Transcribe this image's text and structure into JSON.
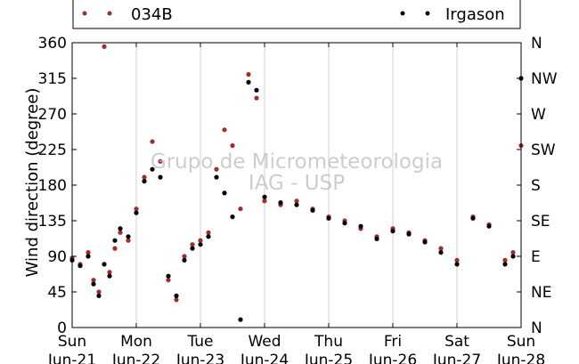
{
  "chart_data": {
    "type": "scatter",
    "ylabel": "Wind direction (degree)",
    "ylim": [
      0,
      360
    ],
    "y_ticks": [
      "0",
      "45",
      "90",
      "135",
      "180",
      "225",
      "270",
      "315",
      "360"
    ],
    "y_ticks_right": [
      "N",
      "NE",
      "E",
      "SE",
      "S",
      "SW",
      "W",
      "NW",
      "N"
    ],
    "xlim": [
      "2015-06-21 00:00",
      "2015-06-28 00:00"
    ],
    "x_ticks": [
      {
        "day": "Sun",
        "date": "Jun-21"
      },
      {
        "day": "Mon",
        "date": "Jun-22"
      },
      {
        "day": "Tue",
        "date": "Jun-23"
      },
      {
        "day": "Wed",
        "date": "Jun-24"
      },
      {
        "day": "Thu",
        "date": "Jun-25"
      },
      {
        "day": "Fri",
        "date": "Jun-26"
      },
      {
        "day": "Sat",
        "date": "Jun-27"
      },
      {
        "day": "Sun",
        "date": "Jun-28"
      }
    ],
    "grid": "vertical",
    "legend_position": "top",
    "watermark": [
      "Grupo de Micrometeorologia",
      "IAG - USP"
    ],
    "series": [
      {
        "name": "034B",
        "color": "#a52a2a",
        "x": [
          "2015-06-21 00:00",
          "2015-06-21 03:00",
          "2015-06-21 06:00",
          "2015-06-21 08:00",
          "2015-06-21 10:00",
          "2015-06-21 12:00",
          "2015-06-21 14:00",
          "2015-06-21 16:00",
          "2015-06-21 18:00",
          "2015-06-21 21:00",
          "2015-06-22 00:00",
          "2015-06-22 03:00",
          "2015-06-22 06:00",
          "2015-06-22 09:00",
          "2015-06-22 12:00",
          "2015-06-22 15:00",
          "2015-06-22 18:00",
          "2015-06-22 21:00",
          "2015-06-23 00:00",
          "2015-06-23 03:00",
          "2015-06-23 06:00",
          "2015-06-23 09:00",
          "2015-06-23 12:00",
          "2015-06-23 15:00",
          "2015-06-23 18:00",
          "2015-06-23 21:00",
          "2015-06-24 00:00",
          "2015-06-24 06:00",
          "2015-06-24 12:00",
          "2015-06-24 18:00",
          "2015-06-25 00:00",
          "2015-06-25 06:00",
          "2015-06-25 12:00",
          "2015-06-25 18:00",
          "2015-06-26 00:00",
          "2015-06-26 06:00",
          "2015-06-26 12:00",
          "2015-06-26 18:00",
          "2015-06-27 00:00",
          "2015-06-27 06:00",
          "2015-06-27 12:00",
          "2015-06-27 18:00",
          "2015-06-27 21:00",
          "2015-06-28 00:00"
        ],
        "y": [
          88,
          80,
          95,
          60,
          45,
          355,
          70,
          100,
          120,
          110,
          150,
          190,
          235,
          210,
          60,
          35,
          90,
          105,
          110,
          120,
          200,
          250,
          230,
          150,
          320,
          290,
          160,
          155,
          160,
          150,
          140,
          135,
          125,
          115,
          125,
          120,
          110,
          100,
          85,
          140,
          130,
          85,
          95,
          230
        ]
      },
      {
        "name": "Irgason",
        "color": "#000000",
        "x": [
          "2015-06-21 00:00",
          "2015-06-21 03:00",
          "2015-06-21 06:00",
          "2015-06-21 08:00",
          "2015-06-21 10:00",
          "2015-06-21 12:00",
          "2015-06-21 14:00",
          "2015-06-21 16:00",
          "2015-06-21 18:00",
          "2015-06-21 21:00",
          "2015-06-22 00:00",
          "2015-06-22 03:00",
          "2015-06-22 06:00",
          "2015-06-22 09:00",
          "2015-06-22 12:00",
          "2015-06-22 15:00",
          "2015-06-22 18:00",
          "2015-06-22 21:00",
          "2015-06-23 00:00",
          "2015-06-23 03:00",
          "2015-06-23 06:00",
          "2015-06-23 09:00",
          "2015-06-23 12:00",
          "2015-06-23 15:00",
          "2015-06-23 18:00",
          "2015-06-23 21:00",
          "2015-06-24 00:00",
          "2015-06-24 06:00",
          "2015-06-24 12:00",
          "2015-06-24 18:00",
          "2015-06-25 00:00",
          "2015-06-25 06:00",
          "2015-06-25 12:00",
          "2015-06-25 18:00",
          "2015-06-26 00:00",
          "2015-06-26 06:00",
          "2015-06-26 12:00",
          "2015-06-26 18:00",
          "2015-06-27 00:00",
          "2015-06-27 06:00",
          "2015-06-27 12:00",
          "2015-06-27 18:00",
          "2015-06-27 21:00",
          "2015-06-28 00:00"
        ],
        "y": [
          85,
          78,
          90,
          55,
          40,
          80,
          65,
          110,
          125,
          115,
          145,
          185,
          200,
          190,
          65,
          40,
          85,
          100,
          105,
          115,
          190,
          170,
          140,
          10,
          310,
          300,
          165,
          158,
          155,
          148,
          138,
          132,
          128,
          112,
          122,
          118,
          108,
          95,
          80,
          138,
          128,
          80,
          90,
          315
        ]
      }
    ]
  }
}
